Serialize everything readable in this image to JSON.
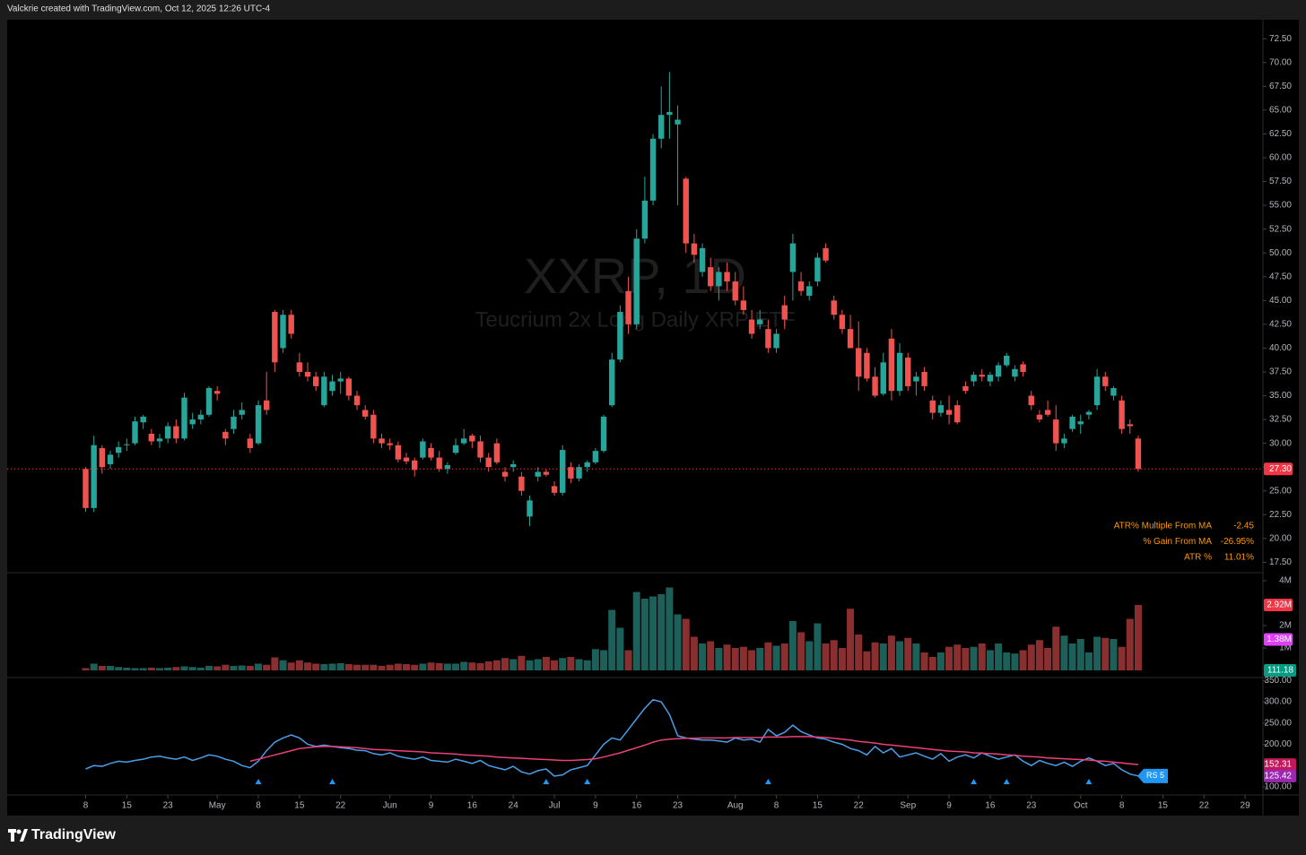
{
  "header": "Valckrie created with TradingView.com, Oct 12, 2025 12:26 UTC-4",
  "footer_brand": "TradingView",
  "chart_data": [
    {
      "type": "candlestick",
      "title": "XXRP, 1D",
      "subtitle": "Teucrium 2x Long Daily XRP ETF",
      "open": [
        27.3,
        23.2,
        29.5,
        27.8,
        29,
        29.8,
        30,
        32.2,
        31,
        30.2,
        30.5,
        31.8,
        30.5,
        32,
        32.5,
        33,
        35.5,
        31.2,
        31.5,
        33,
        30.5,
        30,
        34.5,
        43.8,
        40,
        43.5,
        38.5,
        37.5,
        37,
        34,
        35.5,
        36.5,
        36.8,
        35,
        33.5,
        33,
        30.5,
        30,
        29.8,
        28.5,
        28.2,
        28.5,
        29.5,
        28.5,
        27.3,
        29,
        30,
        30.8,
        30.2,
        28.5,
        30,
        27,
        27.5,
        26.5,
        22.3,
        26.5,
        27,
        25.5,
        24.8,
        27.5,
        26.3,
        27.5,
        28,
        29.2,
        34,
        38.8,
        46,
        42.5,
        51.5,
        55.5,
        62,
        64.5,
        63.5,
        57.8,
        51,
        48,
        48.5,
        46.5,
        48,
        47,
        45,
        43,
        42.5,
        42,
        40,
        44.5,
        48,
        47,
        45.5,
        47,
        50.5,
        45,
        43.5,
        42,
        40,
        39.5,
        37,
        35.2,
        41,
        35.5,
        39,
        36.5,
        37.5,
        34.5,
        33.2,
        33.5,
        34,
        36,
        36.5,
        37.2,
        36.5,
        37,
        38.2,
        37,
        38.3,
        35,
        33,
        33.5,
        32.5,
        30,
        31.5,
        32,
        33,
        34,
        37,
        35,
        34.5,
        32,
        30.5
      ],
      "high": [
        27.5,
        30.8,
        29.8,
        29.2,
        30.2,
        30.5,
        32.8,
        33,
        31.5,
        31,
        32.2,
        32.5,
        35.3,
        33.2,
        33.5,
        36,
        36,
        31.5,
        33.5,
        34.3,
        31,
        34.5,
        37.5,
        44,
        44,
        44,
        39.5,
        38.5,
        37.5,
        37.5,
        37.2,
        37.5,
        37,
        35.5,
        34,
        33.5,
        31,
        30.5,
        30.2,
        29,
        28.5,
        30.5,
        30,
        29.2,
        28,
        30.5,
        31.5,
        31,
        30.8,
        29,
        30.5,
        27.5,
        28.2,
        27,
        24.5,
        27.5,
        27.3,
        26,
        29.8,
        28,
        27.8,
        28.2,
        29.5,
        33,
        39.5,
        44.5,
        47.5,
        52.5,
        58,
        62.5,
        67.5,
        69,
        65.5,
        58,
        52,
        51,
        49.5,
        48.5,
        49,
        48,
        46.5,
        44,
        44,
        43,
        42,
        45.5,
        52,
        48,
        47,
        50,
        51,
        45.5,
        44,
        43.5,
        42.8,
        40,
        38,
        39.5,
        42,
        40.5,
        39.5,
        37.5,
        38,
        35,
        34.5,
        35,
        34.5,
        36.5,
        37.5,
        37.8,
        37.5,
        38.5,
        39.5,
        38.2,
        38.6,
        35.5,
        33.5,
        34.5,
        34,
        31,
        33,
        33,
        33.5,
        37.8,
        37.5,
        36,
        35,
        32.5,
        30.8
      ],
      "low": [
        22.8,
        22.8,
        26.8,
        27.3,
        28.5,
        29.2,
        29.8,
        31.5,
        29.8,
        29.5,
        30,
        30,
        30.3,
        31.5,
        32,
        32.8,
        34.5,
        29.8,
        31,
        32.5,
        29,
        29.8,
        33,
        37.5,
        39.5,
        41,
        37,
        36.5,
        35.5,
        33.8,
        35,
        35.2,
        34.5,
        33.5,
        32.5,
        30,
        29.5,
        29.3,
        28,
        27.8,
        26.5,
        28.3,
        28.2,
        27,
        26.8,
        28.8,
        29.8,
        29.5,
        28,
        27,
        27.8,
        26,
        27,
        24.5,
        21.3,
        26,
        26.5,
        24.5,
        24.5,
        25.8,
        26,
        27,
        27.8,
        29,
        33.8,
        38.5,
        41.5,
        42,
        51,
        55,
        61,
        62,
        55,
        50,
        49,
        47.5,
        46,
        45,
        46,
        44.5,
        43.5,
        41,
        42,
        39.5,
        39.5,
        42,
        45,
        45.5,
        45,
        46.5,
        49,
        43,
        41.5,
        40,
        35.5,
        36.5,
        34.8,
        35,
        34.5,
        35,
        35.5,
        35,
        35.5,
        32.5,
        32.8,
        32,
        32,
        35.2,
        36,
        36.5,
        36,
        36.5,
        38,
        36.5,
        37,
        33.5,
        32.2,
        32.8,
        29.2,
        29.5,
        31.2,
        31,
        32.5,
        33.5,
        35.5,
        34.5,
        31,
        31,
        27
      ],
      "close": [
        23.2,
        29.8,
        27.5,
        28.8,
        29.6,
        29.9,
        32.3,
        32.8,
        30.2,
        30.5,
        31.8,
        30.5,
        34.8,
        32.5,
        33,
        35.8,
        35.2,
        30.5,
        32.8,
        33.5,
        29.5,
        34,
        33.5,
        38.5,
        43.5,
        41.5,
        37.5,
        37,
        36,
        37,
        36.5,
        36.8,
        35,
        34,
        32.8,
        30.5,
        30,
        29.8,
        28.3,
        28.1,
        27.2,
        30.2,
        28.5,
        27.3,
        27.7,
        29.8,
        30.5,
        30.2,
        28.5,
        27.5,
        28,
        26.5,
        27.8,
        25,
        24,
        27,
        26.7,
        24.8,
        29.3,
        26.3,
        27.5,
        28,
        29.2,
        32.8,
        38.8,
        43.8,
        42.5,
        51.5,
        55.5,
        62,
        64.5,
        64.8,
        64,
        51,
        49.8,
        50.5,
        46.5,
        48,
        47,
        45,
        44,
        41.5,
        43,
        40,
        41.5,
        43,
        51,
        46,
        46.5,
        49.5,
        49.2,
        43.5,
        42,
        40,
        37,
        36.8,
        35,
        38.5,
        35.5,
        39.5,
        36,
        37,
        36,
        33.2,
        34,
        33,
        32.2,
        35.5,
        37.2,
        37,
        37.2,
        38.2,
        39.2,
        37.8,
        37.5,
        34,
        32.5,
        33,
        30,
        30.5,
        32.8,
        32.3,
        33.3,
        37,
        36,
        35.8,
        31.5,
        31.8,
        27.3
      ],
      "up_color": "#26a69a",
      "down_color": "#ef5350",
      "ylim": [
        16.5,
        74.5
      ],
      "yticks": [
        {
          "value": 17.5,
          "label": "17.50"
        },
        {
          "value": 20,
          "label": "20.00"
        },
        {
          "value": 22.5,
          "label": "22.50"
        },
        {
          "value": 25,
          "label": "25.00"
        },
        {
          "value": 27.5,
          "label": "27.50"
        },
        {
          "value": 30,
          "label": "30.00"
        },
        {
          "value": 32.5,
          "label": "32.50"
        },
        {
          "value": 35,
          "label": "35.00"
        },
        {
          "value": 37.5,
          "label": "37.50"
        },
        {
          "value": 40,
          "label": "40.00"
        },
        {
          "value": 42.5,
          "label": "42.50"
        },
        {
          "value": 45,
          "label": "45.00"
        },
        {
          "value": 47.5,
          "label": "47.50"
        },
        {
          "value": 50,
          "label": "50.00"
        },
        {
          "value": 52.5,
          "label": "52.50"
        },
        {
          "value": 55,
          "label": "55.00"
        },
        {
          "value": 57.5,
          "label": "57.50"
        },
        {
          "value": 60,
          "label": "60.00"
        },
        {
          "value": 62.5,
          "label": "62.50"
        },
        {
          "value": 65,
          "label": "65.00"
        },
        {
          "value": 67.5,
          "label": "67.50"
        },
        {
          "value": 70,
          "label": "70.00"
        },
        {
          "value": 72.5,
          "label": "72.50"
        }
      ],
      "xlim": [
        -9.545,
        143.17
      ],
      "xticks": [
        {
          "value": 0,
          "label": "8"
        },
        {
          "value": 5,
          "label": "15"
        },
        {
          "value": 10,
          "label": "23"
        },
        {
          "value": 16,
          "label": "May"
        },
        {
          "value": 21,
          "label": "8"
        },
        {
          "value": 26,
          "label": "15"
        },
        {
          "value": 31,
          "label": "22"
        },
        {
          "value": 37,
          "label": "Jun"
        },
        {
          "value": 42,
          "label": "9"
        },
        {
          "value": 47,
          "label": "16"
        },
        {
          "value": 52,
          "label": "24"
        },
        {
          "value": 57,
          "label": "Jul"
        },
        {
          "value": 62,
          "label": "9"
        },
        {
          "value": 67,
          "label": "16"
        },
        {
          "value": 72,
          "label": "23"
        },
        {
          "value": 79,
          "label": "Aug"
        },
        {
          "value": 84,
          "label": "8"
        },
        {
          "value": 89,
          "label": "15"
        },
        {
          "value": 94,
          "label": "22"
        },
        {
          "value": 100,
          "label": "Sep"
        },
        {
          "value": 105,
          "label": "9"
        },
        {
          "value": 110,
          "label": "16"
        },
        {
          "value": 115,
          "label": "23"
        },
        {
          "value": 121,
          "label": "Oct"
        },
        {
          "value": 126,
          "label": "8"
        },
        {
          "value": 131,
          "label": "15"
        },
        {
          "value": 136,
          "label": "22"
        },
        {
          "value": 141,
          "label": "29"
        }
      ],
      "last_price": {
        "value": 27.3,
        "label": "27.30",
        "color": "#f23645"
      },
      "stats": [
        {
          "label": "ATR% Multiple From MA",
          "value": "-2.45"
        },
        {
          "label": "% Gain From MA",
          "value": "-26.95%"
        },
        {
          "label": "ATR %",
          "value": "11.01%"
        }
      ],
      "stats_color": "#ff9800"
    },
    {
      "type": "bar",
      "values": [
        0.1,
        0.3,
        0.2,
        0.2,
        0.15,
        0.12,
        0.1,
        0.1,
        0.12,
        0.1,
        0.12,
        0.15,
        0.18,
        0.15,
        0.12,
        0.2,
        0.18,
        0.25,
        0.2,
        0.22,
        0.2,
        0.3,
        0.25,
        0.58,
        0.45,
        0.35,
        0.45,
        0.35,
        0.3,
        0.28,
        0.3,
        0.32,
        0.28,
        0.25,
        0.25,
        0.25,
        0.2,
        0.25,
        0.3,
        0.28,
        0.25,
        0.3,
        0.35,
        0.32,
        0.3,
        0.3,
        0.38,
        0.35,
        0.32,
        0.4,
        0.45,
        0.55,
        0.5,
        0.65,
        0.45,
        0.5,
        0.6,
        0.45,
        0.55,
        0.6,
        0.5,
        0.45,
        0.95,
        0.9,
        2.7,
        1.9,
        0.9,
        3.5,
        3.2,
        3.3,
        3.4,
        3.7,
        2.5,
        2.3,
        1.5,
        1.2,
        1.3,
        1.0,
        1.15,
        1.0,
        1.05,
        0.9,
        1.0,
        1.25,
        1.1,
        1.2,
        2.2,
        1.7,
        1.3,
        2.1,
        1.2,
        1.35,
        1.0,
        2.75,
        1.6,
        0.85,
        1.25,
        1.2,
        1.55,
        1.3,
        1.45,
        1.2,
        0.8,
        0.6,
        0.8,
        1.05,
        1.15,
        1.0,
        1.05,
        1.2,
        0.9,
        1.2,
        0.8,
        0.75,
        0.9,
        1.15,
        1.35,
        1.0,
        1.95,
        1.55,
        1.2,
        1.4,
        0.8,
        1.5,
        1.45,
        1.4,
        1.05,
        2.3,
        2.92
      ],
      "up_color": "#1d5f59",
      "down_color": "#8a2f2f",
      "ylim": [
        0,
        4.32
      ],
      "yticks": [
        {
          "value": 1,
          "label": "1M"
        },
        {
          "value": 2,
          "label": "2M"
        },
        {
          "value": 4,
          "label": "4M"
        }
      ],
      "markers": [
        {
          "value": 2.92,
          "label": "2.92M",
          "color": "#f23645"
        },
        {
          "value": 1.38,
          "label": "1.38M",
          "color": "#e040fb"
        }
      ],
      "footer_label": {
        "label": "111.18",
        "color": "#089981"
      }
    },
    {
      "type": "line",
      "series": [
        {
          "name": "RS 5",
          "color": "#4a9fe8",
          "values": [
            142,
            150,
            148,
            155,
            160,
            158,
            162,
            165,
            170,
            172,
            168,
            165,
            170,
            162,
            168,
            175,
            172,
            165,
            160,
            150,
            145,
            160,
            185,
            205,
            215,
            222,
            215,
            200,
            195,
            198,
            195,
            192,
            190,
            186,
            185,
            178,
            175,
            180,
            172,
            168,
            165,
            170,
            162,
            160,
            158,
            165,
            160,
            155,
            162,
            150,
            145,
            140,
            148,
            135,
            130,
            138,
            142,
            125,
            128,
            140,
            145,
            150,
            175,
            200,
            215,
            210,
            235,
            260,
            285,
            305,
            300,
            270,
            220,
            215,
            212,
            210,
            210,
            208,
            205,
            215,
            210,
            212,
            205,
            235,
            220,
            228,
            245,
            230,
            222,
            215,
            212,
            205,
            200,
            190,
            185,
            175,
            195,
            180,
            190,
            170,
            175,
            180,
            172,
            165,
            178,
            160,
            170,
            175,
            168,
            180,
            172,
            165,
            170,
            175,
            160,
            150,
            162,
            155,
            150,
            158,
            148,
            160,
            168,
            160,
            150,
            155,
            140,
            130,
            125.42
          ]
        },
        {
          "color": "#ec407a",
          "values": [
            null,
            null,
            null,
            null,
            null,
            null,
            null,
            null,
            null,
            null,
            null,
            null,
            null,
            null,
            null,
            null,
            null,
            null,
            null,
            null,
            160,
            165,
            170,
            175,
            180,
            185,
            190,
            192,
            194,
            195,
            195,
            194,
            193,
            192,
            190,
            188,
            187,
            186,
            185,
            184,
            183,
            182,
            180,
            179,
            178,
            177,
            175,
            174,
            173,
            172,
            170,
            169,
            168,
            167,
            166,
            165,
            164,
            163,
            162,
            162,
            163,
            164,
            166,
            170,
            175,
            180,
            186,
            192,
            198,
            205,
            210,
            212,
            213,
            214,
            214,
            215,
            215,
            215,
            215,
            216,
            216,
            216,
            216,
            217,
            217,
            217,
            218,
            218,
            218,
            217,
            216,
            214,
            212,
            210,
            207,
            205,
            203,
            200,
            198,
            196,
            194,
            192,
            190,
            188,
            186,
            184,
            183,
            182,
            180,
            179,
            178,
            177,
            175,
            174,
            172,
            171,
            170,
            168,
            167,
            166,
            165,
            164,
            163,
            161,
            160,
            158,
            156,
            154,
            152.31
          ]
        }
      ],
      "ylim": [
        85,
        355
      ],
      "yticks": [
        {
          "value": 100,
          "label": "100.00"
        },
        {
          "value": 200,
          "label": "200.00"
        },
        {
          "value": 250,
          "label": "250.00"
        },
        {
          "value": 300,
          "label": "300.00"
        },
        {
          "value": 350,
          "label": "350.00"
        }
      ],
      "markers": [
        {
          "value": 152.31,
          "label": "152.31",
          "color": "#c2185b"
        },
        {
          "value": 125.42,
          "label": "125.42",
          "color": "#9c27b0"
        }
      ],
      "signals": [
        21,
        30,
        56,
        61,
        83,
        108,
        112,
        122
      ],
      "signal_color": "#2196f3"
    }
  ]
}
